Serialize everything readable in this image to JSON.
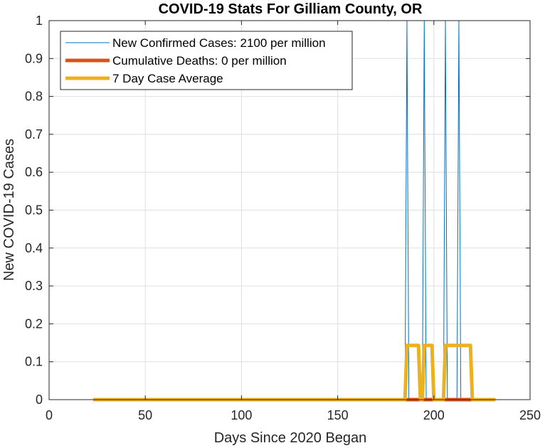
{
  "chart_data": {
    "type": "line",
    "title": "COVID-19 Stats For Gilliam County, OR",
    "xlabel": "Days Since 2020 Began",
    "ylabel": "New COVID-19 Cases",
    "xlim": [
      0,
      250
    ],
    "ylim": [
      0,
      1
    ],
    "xticks": [
      0,
      50,
      100,
      150,
      200,
      250
    ],
    "yticks": [
      0,
      0.1,
      0.2,
      0.3,
      0.4,
      0.5,
      0.6,
      0.7,
      0.8,
      0.9,
      1
    ],
    "xtick_labels": [
      "0",
      "50",
      "100",
      "150",
      "200",
      "250"
    ],
    "ytick_labels": [
      "0",
      "0.1",
      "0.2",
      "0.3",
      "0.4",
      "0.5",
      "0.6",
      "0.7",
      "0.8",
      "0.9",
      "1"
    ],
    "grid": true,
    "legend_position": "top-left",
    "series": [
      {
        "name": "New Confirmed Cases: 2100 per million",
        "color": "#0072BD",
        "points": [
          [
            23,
            0
          ],
          [
            185,
            0
          ],
          [
            186,
            1
          ],
          [
            187,
            0
          ],
          [
            194,
            0
          ],
          [
            195,
            1
          ],
          [
            196,
            0
          ],
          [
            205,
            0
          ],
          [
            206,
            1
          ],
          [
            207,
            0
          ],
          [
            212,
            0
          ],
          [
            213,
            1
          ],
          [
            214,
            0
          ],
          [
            232,
            0
          ]
        ]
      },
      {
        "name": "Cumulative Deaths: 0 per million",
        "color": "#D95319",
        "points": [
          [
            23,
            0
          ],
          [
            232,
            0
          ]
        ]
      },
      {
        "name": "7 Day Case Average",
        "color": "#EDB120",
        "points": [
          [
            23,
            0
          ],
          [
            185,
            0
          ],
          [
            186,
            0.143
          ],
          [
            192,
            0.143
          ],
          [
            193,
            0
          ],
          [
            194,
            0
          ],
          [
            195,
            0.143
          ],
          [
            199,
            0.143
          ],
          [
            200,
            0
          ],
          [
            205,
            0
          ],
          [
            206,
            0.143
          ],
          [
            219,
            0.143
          ],
          [
            220,
            0
          ],
          [
            232,
            0
          ]
        ]
      }
    ]
  }
}
